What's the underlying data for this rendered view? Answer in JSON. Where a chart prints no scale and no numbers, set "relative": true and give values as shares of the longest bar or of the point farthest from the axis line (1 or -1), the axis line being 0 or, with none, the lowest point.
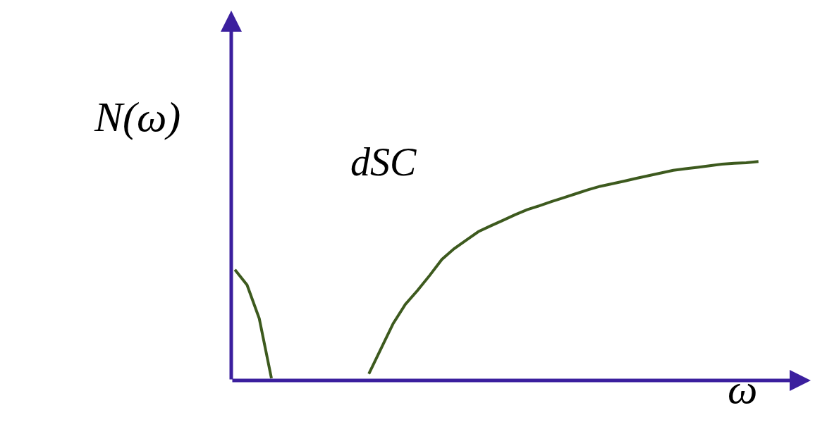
{
  "chart_data": {
    "type": "line",
    "relative": true,
    "xlabel": "ω",
    "ylabel": "N(ω)",
    "annotations": [
      "dSC"
    ],
    "marker": "none",
    "line_style": "solid",
    "categories": [
      null,
      null,
      null,
      null,
      null,
      null,
      null,
      null,
      null,
      null,
      null,
      null,
      null,
      null,
      null,
      null,
      null,
      null,
      null,
      null,
      null,
      null,
      null,
      null,
      null,
      null,
      null,
      null,
      null,
      null,
      null,
      null,
      null,
      null,
      null,
      null,
      null,
      null,
      null,
      null,
      null,
      null,
      null,
      null
    ],
    "series": [
      {
        "color": "#3d5a1e",
        "values": [
          0.506,
          0.436,
          0.283,
          0.01,
          null,
          null,
          null,
          null,
          null,
          null,
          null,
          null,
          null,
          null,
          null,
          null,
          null,
          null,
          null,
          null,
          null,
          null,
          null,
          null,
          null,
          null,
          null,
          null,
          null,
          null,
          null,
          null,
          null,
          null,
          null,
          null,
          null,
          null,
          null,
          null,
          null,
          null,
          null,
          null
        ]
      },
      {
        "color": "#3d5a1e",
        "values": [
          null,
          null,
          null,
          null,
          null,
          null,
          null,
          null,
          null,
          null,
          null,
          0.03,
          0.145,
          0.26,
          0.348,
          0.411,
          0.48,
          0.553,
          0.602,
          0.641,
          0.68,
          0.706,
          0.731,
          0.757,
          0.78,
          0.798,
          0.817,
          0.835,
          0.853,
          0.871,
          0.887,
          0.899,
          0.911,
          0.924,
          0.936,
          0.948,
          0.96,
          0.967,
          0.974,
          0.981,
          0.988,
          0.992,
          0.995,
          1.0
        ]
      }
    ]
  }
}
